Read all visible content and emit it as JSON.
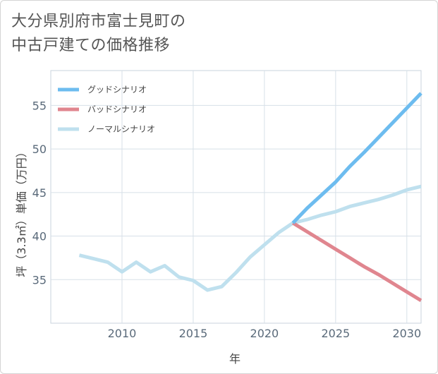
{
  "chart_data": {
    "type": "line",
    "title_line1": "大分県別府市富士見町の",
    "title_line2": "中古戸建ての価格推移",
    "xlabel": "年",
    "ylabel": "坪（3.3㎡）単価（万円）",
    "xlim": [
      2005,
      2031
    ],
    "ylim": [
      30,
      59
    ],
    "x_ticks": [
      2010,
      2015,
      2020,
      2025,
      2030
    ],
    "y_ticks": [
      35,
      40,
      45,
      50,
      55
    ],
    "grid": true,
    "legend_position": "top-left",
    "series": [
      {
        "name": "グッドシナリオ",
        "color": "#6dbcef",
        "points": [
          [
            2022,
            41.5
          ],
          [
            2023,
            43.2
          ],
          [
            2024,
            44.7
          ],
          [
            2025,
            46.2
          ],
          [
            2026,
            48.0
          ],
          [
            2027,
            49.6
          ],
          [
            2028,
            51.3
          ],
          [
            2029,
            53.0
          ],
          [
            2030,
            54.7
          ],
          [
            2031,
            56.4
          ]
        ]
      },
      {
        "name": "バッドシナリオ",
        "color": "#e0868f",
        "points": [
          [
            2022,
            41.5
          ],
          [
            2023,
            40.5
          ],
          [
            2024,
            39.5
          ],
          [
            2025,
            38.5
          ],
          [
            2026,
            37.5
          ],
          [
            2027,
            36.5
          ],
          [
            2028,
            35.6
          ],
          [
            2029,
            34.6
          ],
          [
            2030,
            33.6
          ],
          [
            2031,
            32.6
          ]
        ]
      },
      {
        "name": "ノーマルシナリオ",
        "color": "#bfe0ee",
        "points": [
          [
            2007,
            37.8
          ],
          [
            2008,
            37.4
          ],
          [
            2009,
            37.0
          ],
          [
            2010,
            35.9
          ],
          [
            2011,
            37.0
          ],
          [
            2012,
            35.9
          ],
          [
            2013,
            36.6
          ],
          [
            2014,
            35.3
          ],
          [
            2015,
            34.9
          ],
          [
            2016,
            33.8
          ],
          [
            2017,
            34.2
          ],
          [
            2018,
            35.8
          ],
          [
            2019,
            37.6
          ],
          [
            2020,
            39.0
          ],
          [
            2021,
            40.4
          ],
          [
            2022,
            41.5
          ],
          [
            2023,
            41.9
          ],
          [
            2024,
            42.4
          ],
          [
            2025,
            42.8
          ],
          [
            2026,
            43.4
          ],
          [
            2027,
            43.8
          ],
          [
            2028,
            44.2
          ],
          [
            2029,
            44.7
          ],
          [
            2030,
            45.3
          ],
          [
            2031,
            45.7
          ]
        ]
      }
    ]
  }
}
